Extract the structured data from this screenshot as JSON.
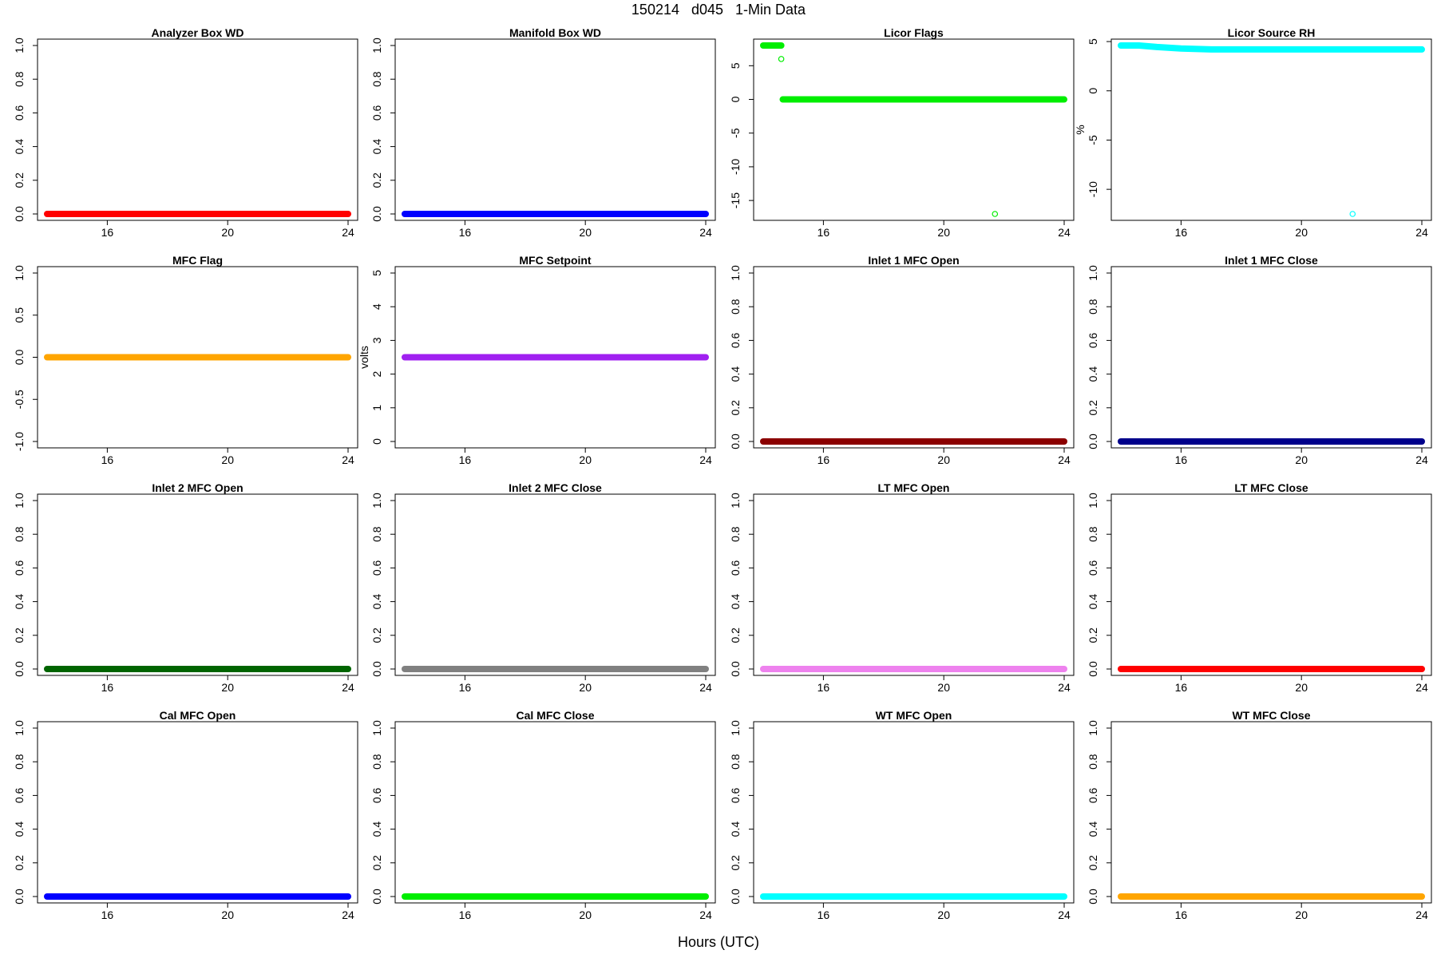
{
  "page": {
    "title": "150214   d045   1-Min Data",
    "xlabel": "Hours (UTC)"
  },
  "chart_data": [
    {
      "type": "scatter",
      "title": "Analyzer Box WD",
      "ylabel": "",
      "color": "#ff0000",
      "xlim": [
        14.0,
        24.0
      ],
      "ylim": [
        0,
        1
      ],
      "x_ticks": [
        16,
        20,
        24
      ],
      "y_ticks": [
        "0.0",
        "0.2",
        "0.4",
        "0.6",
        "0.8",
        "1.0"
      ],
      "series": [
        {
          "x_start": 14.0,
          "x_end": 24.0,
          "y": 0
        }
      ]
    },
    {
      "type": "scatter",
      "title": "Manifold Box WD",
      "ylabel": "",
      "color": "#0000ff",
      "xlim": [
        14.0,
        24.0
      ],
      "ylim": [
        0,
        1
      ],
      "x_ticks": [
        16,
        20,
        24
      ],
      "y_ticks": [
        "0.0",
        "0.2",
        "0.4",
        "0.6",
        "0.8",
        "1.0"
      ],
      "series": [
        {
          "x_start": 14.0,
          "x_end": 24.0,
          "y": 0
        }
      ]
    },
    {
      "type": "scatter",
      "title": "Licor Flags",
      "ylabel": "",
      "color": "#00ee00",
      "xlim": [
        14.0,
        24.0
      ],
      "ylim": [
        -17,
        8
      ],
      "x_ticks": [
        16,
        20,
        24
      ],
      "y_ticks": [
        "-15",
        "-10",
        "-5",
        "0",
        "5"
      ],
      "series": [
        {
          "x_start": 14.0,
          "x_end": 14.6,
          "y": 8
        },
        {
          "x_start": 14.65,
          "x_end": 24.0,
          "y": 0
        }
      ],
      "points": [
        {
          "x": 14.6,
          "y": 6
        },
        {
          "x": 21.7,
          "y": -17
        }
      ]
    },
    {
      "type": "scatter",
      "title": "Licor Source RH",
      "ylabel": "%",
      "color": "#00ffff",
      "xlim": [
        14.0,
        24.0
      ],
      "ylim": [
        -12.5,
        4.6
      ],
      "x_ticks": [
        16,
        20,
        24
      ],
      "y_ticks": [
        "-10",
        "-5",
        "0",
        "5"
      ],
      "curve": [
        [
          14.0,
          4.6
        ],
        [
          14.6,
          4.6
        ],
        [
          15.2,
          4.45
        ],
        [
          16.0,
          4.3
        ],
        [
          17.0,
          4.2
        ],
        [
          18.5,
          4.2
        ],
        [
          20.0,
          4.2
        ],
        [
          22.0,
          4.2
        ],
        [
          24.0,
          4.2
        ]
      ],
      "points": [
        {
          "x": 21.7,
          "y": -12.5
        }
      ]
    },
    {
      "type": "scatter",
      "title": "MFC Flag",
      "ylabel": "",
      "color": "#ffa500",
      "xlim": [
        14.0,
        24.0
      ],
      "ylim": [
        -1,
        1
      ],
      "x_ticks": [
        16,
        20,
        24
      ],
      "y_ticks": [
        "-1.0",
        "-0.5",
        "0.0",
        "0.5",
        "1.0"
      ],
      "series": [
        {
          "x_start": 14.0,
          "x_end": 24.0,
          "y": 0
        }
      ]
    },
    {
      "type": "scatter",
      "title": "MFC Setpoint",
      "ylabel": "volts",
      "color": "#a020f0",
      "xlim": [
        14.0,
        24.0
      ],
      "ylim": [
        0,
        5
      ],
      "x_ticks": [
        16,
        20,
        24
      ],
      "y_ticks": [
        "0",
        "1",
        "2",
        "3",
        "4",
        "5"
      ],
      "series": [
        {
          "x_start": 14.0,
          "x_end": 24.0,
          "y": 2.5
        }
      ]
    },
    {
      "type": "scatter",
      "title": "Inlet 1 MFC Open",
      "ylabel": "",
      "color": "#8b0000",
      "xlim": [
        14.0,
        24.0
      ],
      "ylim": [
        0,
        1
      ],
      "x_ticks": [
        16,
        20,
        24
      ],
      "y_ticks": [
        "0.0",
        "0.2",
        "0.4",
        "0.6",
        "0.8",
        "1.0"
      ],
      "series": [
        {
          "x_start": 14.0,
          "x_end": 24.0,
          "y": 0
        }
      ]
    },
    {
      "type": "scatter",
      "title": "Inlet 1 MFC Close",
      "ylabel": "",
      "color": "#00008b",
      "xlim": [
        14.0,
        24.0
      ],
      "ylim": [
        0,
        1
      ],
      "x_ticks": [
        16,
        20,
        24
      ],
      "y_ticks": [
        "0.0",
        "0.2",
        "0.4",
        "0.6",
        "0.8",
        "1.0"
      ],
      "series": [
        {
          "x_start": 14.0,
          "x_end": 24.0,
          "y": 0
        }
      ]
    },
    {
      "type": "scatter",
      "title": "Inlet 2 MFC Open",
      "ylabel": "",
      "color": "#006400",
      "xlim": [
        14.0,
        24.0
      ],
      "ylim": [
        0,
        1
      ],
      "x_ticks": [
        16,
        20,
        24
      ],
      "y_ticks": [
        "0.0",
        "0.2",
        "0.4",
        "0.6",
        "0.8",
        "1.0"
      ],
      "series": [
        {
          "x_start": 14.0,
          "x_end": 24.0,
          "y": 0
        }
      ]
    },
    {
      "type": "scatter",
      "title": "Inlet 2 MFC Close",
      "ylabel": "",
      "color": "#808080",
      "xlim": [
        14.0,
        24.0
      ],
      "ylim": [
        0,
        1
      ],
      "x_ticks": [
        16,
        20,
        24
      ],
      "y_ticks": [
        "0.0",
        "0.2",
        "0.4",
        "0.6",
        "0.8",
        "1.0"
      ],
      "series": [
        {
          "x_start": 14.0,
          "x_end": 24.0,
          "y": 0
        }
      ]
    },
    {
      "type": "scatter",
      "title": "LT MFC Open",
      "ylabel": "",
      "color": "#ee82ee",
      "xlim": [
        14.0,
        24.0
      ],
      "ylim": [
        0,
        1
      ],
      "x_ticks": [
        16,
        20,
        24
      ],
      "y_ticks": [
        "0.0",
        "0.2",
        "0.4",
        "0.6",
        "0.8",
        "1.0"
      ],
      "series": [
        {
          "x_start": 14.0,
          "x_end": 24.0,
          "y": 0
        }
      ]
    },
    {
      "type": "scatter",
      "title": "LT MFC Close",
      "ylabel": "",
      "color": "#ff0000",
      "xlim": [
        14.0,
        24.0
      ],
      "ylim": [
        0,
        1
      ],
      "x_ticks": [
        16,
        20,
        24
      ],
      "y_ticks": [
        "0.0",
        "0.2",
        "0.4",
        "0.6",
        "0.8",
        "1.0"
      ],
      "series": [
        {
          "x_start": 14.0,
          "x_end": 24.0,
          "y": 0
        }
      ]
    },
    {
      "type": "scatter",
      "title": "Cal MFC Open",
      "ylabel": "",
      "color": "#0000ff",
      "xlim": [
        14.0,
        24.0
      ],
      "ylim": [
        0,
        1
      ],
      "x_ticks": [
        16,
        20,
        24
      ],
      "y_ticks": [
        "0.0",
        "0.2",
        "0.4",
        "0.6",
        "0.8",
        "1.0"
      ],
      "series": [
        {
          "x_start": 14.0,
          "x_end": 24.0,
          "y": 0
        }
      ]
    },
    {
      "type": "scatter",
      "title": "Cal MFC Close",
      "ylabel": "",
      "color": "#00ee00",
      "xlim": [
        14.0,
        24.0
      ],
      "ylim": [
        0,
        1
      ],
      "x_ticks": [
        16,
        20,
        24
      ],
      "y_ticks": [
        "0.0",
        "0.2",
        "0.4",
        "0.6",
        "0.8",
        "1.0"
      ],
      "series": [
        {
          "x_start": 14.0,
          "x_end": 24.0,
          "y": 0
        }
      ]
    },
    {
      "type": "scatter",
      "title": "WT MFC Open",
      "ylabel": "",
      "color": "#00ffff",
      "xlim": [
        14.0,
        24.0
      ],
      "ylim": [
        0,
        1
      ],
      "x_ticks": [
        16,
        20,
        24
      ],
      "y_ticks": [
        "0.0",
        "0.2",
        "0.4",
        "0.6",
        "0.8",
        "1.0"
      ],
      "series": [
        {
          "x_start": 14.0,
          "x_end": 24.0,
          "y": 0
        }
      ]
    },
    {
      "type": "scatter",
      "title": "WT MFC Close",
      "ylabel": "",
      "color": "#ffa500",
      "xlim": [
        14.0,
        24.0
      ],
      "ylim": [
        0,
        1
      ],
      "x_ticks": [
        16,
        20,
        24
      ],
      "y_ticks": [
        "0.0",
        "0.2",
        "0.4",
        "0.6",
        "0.8",
        "1.0"
      ],
      "series": [
        {
          "x_start": 14.0,
          "x_end": 24.0,
          "y": 0
        }
      ]
    }
  ]
}
